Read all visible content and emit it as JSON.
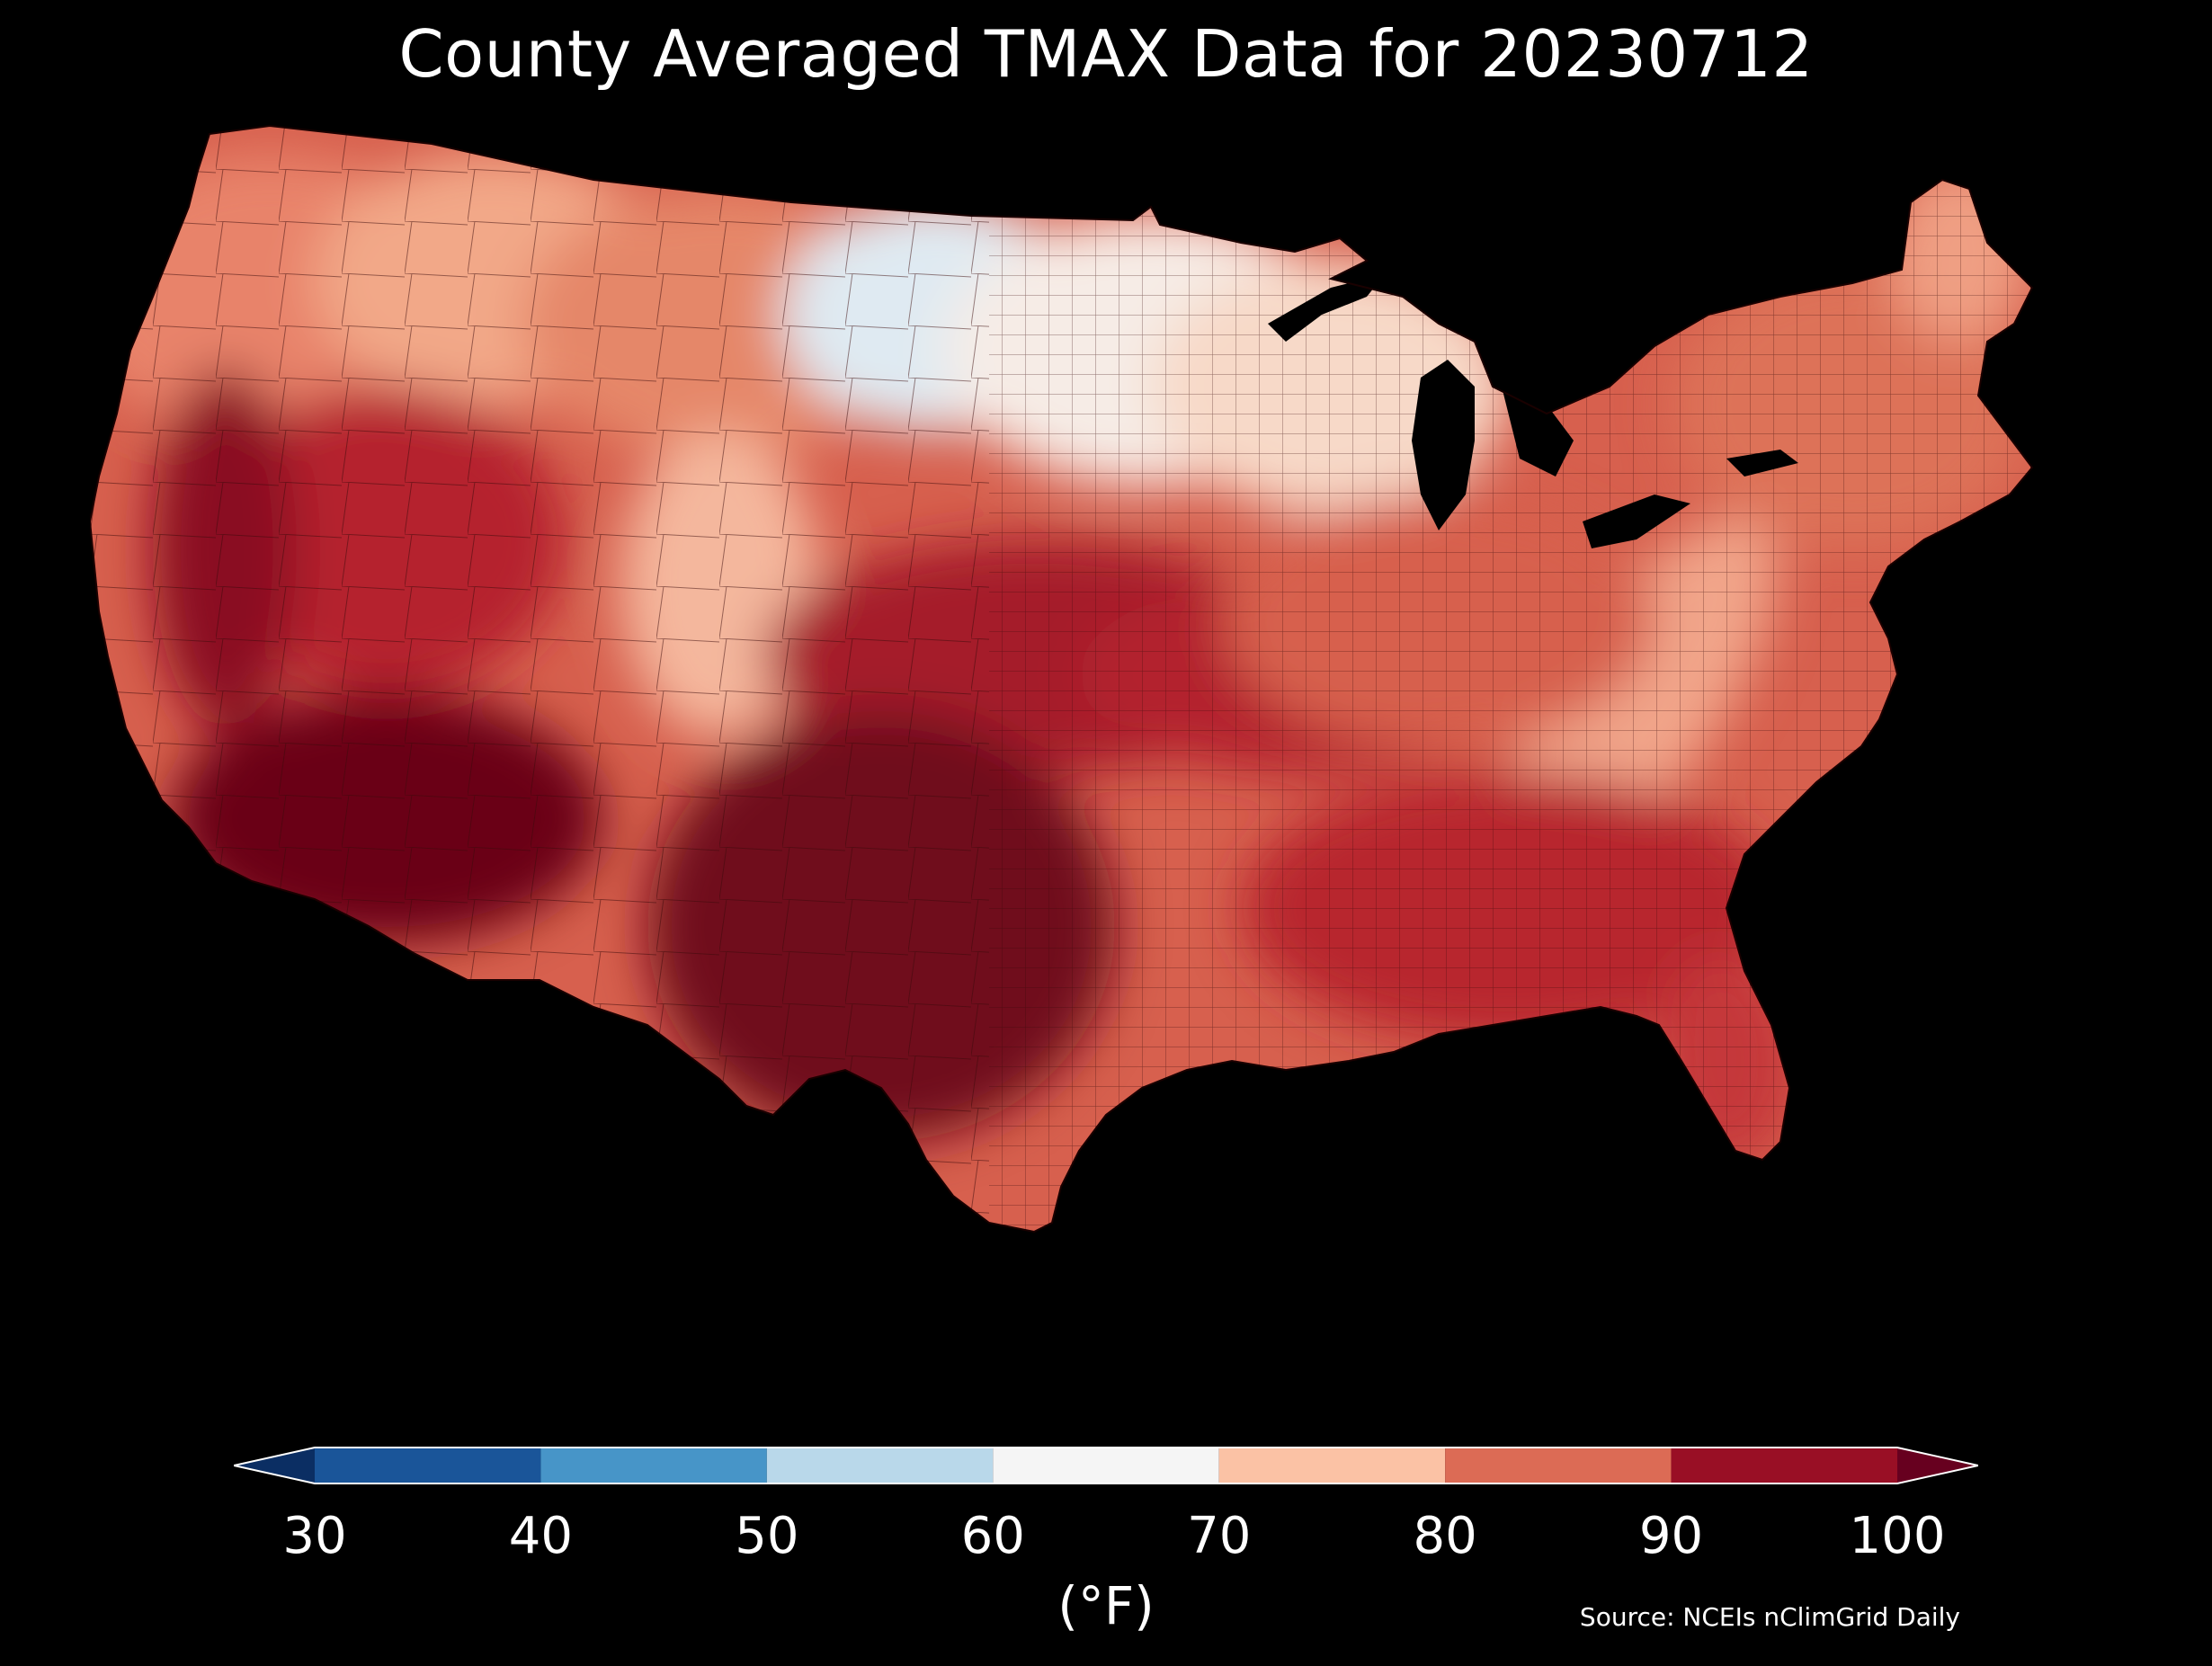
{
  "title": "County Averaged TMAX Data for 20230712",
  "source": "Source: NCEIs nClimGrid Daily",
  "colorbar": {
    "unit_label": "(°F)",
    "ticks": [
      "30",
      "40",
      "50",
      "60",
      "70",
      "80",
      "90",
      "100"
    ],
    "bins": [
      {
        "from": 30,
        "to": 40,
        "color": "#1a5599"
      },
      {
        "from": 40,
        "to": 50,
        "color": "#4795c8"
      },
      {
        "from": 50,
        "to": 60,
        "color": "#b9d8ea"
      },
      {
        "from": 60,
        "to": 70,
        "color": "#f5f5f5"
      },
      {
        "from": 70,
        "to": 80,
        "color": "#fbc2a5"
      },
      {
        "from": 80,
        "to": 90,
        "color": "#dc6b55"
      },
      {
        "from": 90,
        "to": 100,
        "color": "#990f25"
      }
    ],
    "under_color": "#0b2e63",
    "over_color": "#67001f",
    "extend": "both"
  },
  "map": {
    "region": "Contiguous United States",
    "units": "°F",
    "background": "#000000",
    "county_border_color": "#3a0a0a",
    "regions": [
      {
        "name": "Southwest desert / Arizona",
        "value_range": [
          100,
          105
        ],
        "color": "#6a0018"
      },
      {
        "name": "Texas",
        "value_range": [
          98,
          105
        ],
        "color": "#6f0a1f"
      },
      {
        "name": "Great Basin / Nevada",
        "value_range": [
          90,
          100
        ],
        "color": "#b5202e"
      },
      {
        "name": "Central Plains / Kansas",
        "value_range": [
          90,
          100
        ],
        "color": "#a51a2a"
      },
      {
        "name": "Pacific Northwest",
        "value_range": [
          75,
          90
        ],
        "color": "#e8836a"
      },
      {
        "name": "Northern Rockies",
        "value_range": [
          70,
          85
        ],
        "color": "#f2a888"
      },
      {
        "name": "North Dakota / Northern Minnesota",
        "value_range": [
          55,
          65
        ],
        "color": "#dfeaf2"
      },
      {
        "name": "Upper Midwest / Great Lakes",
        "value_range": [
          65,
          75
        ],
        "color": "#f7e3d8"
      },
      {
        "name": "Ohio Valley / Midwest",
        "value_range": [
          80,
          90
        ],
        "color": "#d7604e"
      },
      {
        "name": "Appalachians",
        "value_range": [
          72,
          80
        ],
        "color": "#f1a58a"
      },
      {
        "name": "Southeast",
        "value_range": [
          88,
          97
        ],
        "color": "#b8252e"
      },
      {
        "name": "Florida",
        "value_range": [
          85,
          95
        ],
        "color": "#c5373a"
      },
      {
        "name": "Northeast / New England",
        "value_range": [
          75,
          88
        ],
        "color": "#dd7258"
      },
      {
        "name": "California Central Valley",
        "value_range": [
          95,
          105
        ],
        "color": "#8a0f24"
      },
      {
        "name": "Colorado Rockies",
        "value_range": [
          70,
          82
        ],
        "color": "#f4b79d"
      }
    ]
  }
}
